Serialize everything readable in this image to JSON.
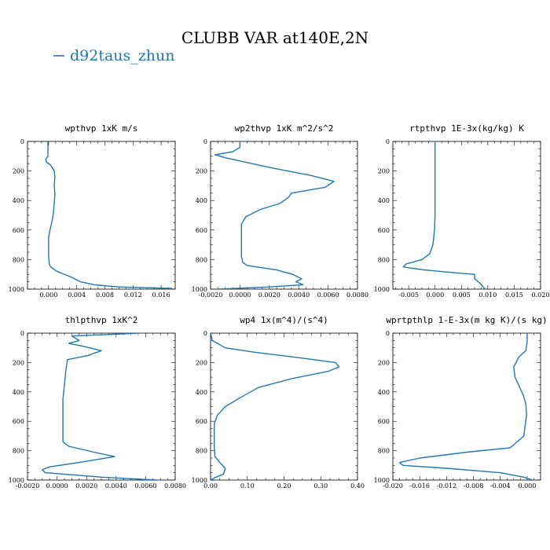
{
  "title": "CLUBB VAR at140E,2N",
  "legend": {
    "entries": [
      {
        "label": "d92taus_zhun",
        "color": "#1f77b4"
      }
    ]
  },
  "chart_data": [
    {
      "type": "line",
      "title": "wpthvp  1xK m/s",
      "xlim": [
        -0.003,
        0.018
      ],
      "ylim": [
        1000,
        0
      ],
      "xticks": [
        0.0,
        0.004,
        0.008,
        0.012,
        0.016
      ],
      "xtick_labels": [
        "0.000",
        "0.004",
        "0.008",
        "0.012",
        "0.016"
      ],
      "yticks": [
        0,
        200,
        400,
        600,
        800,
        1000
      ],
      "series": [
        {
          "color": "#1f77b4",
          "x": [
            -0.0001,
            -0.0001,
            -0.0001,
            -0.0001,
            -0.0004,
            -0.0003,
            0.0003,
            0.0008,
            0.0009,
            0.0008,
            0.0009,
            0.0008,
            0.0007,
            0.0005,
            0.0002,
            0.0,
            0.0,
            0.0,
            0.0001,
            0.0003,
            0.0012,
            0.0033,
            0.0045,
            0.0065,
            0.01,
            0.0175
          ],
          "y": [
            0,
            40,
            80,
            100,
            120,
            140,
            160,
            200,
            240,
            300,
            360,
            420,
            480,
            540,
            600,
            650,
            700,
            780,
            830,
            850,
            880,
            920,
            950,
            970,
            985,
            995
          ]
        }
      ]
    },
    {
      "type": "line",
      "title": "wp2thvp  1xK m^2/s^2",
      "xlim": [
        -0.002,
        0.008
      ],
      "ylim": [
        1000,
        0
      ],
      "xticks": [
        -0.002,
        0.0,
        0.002,
        0.004,
        0.006,
        0.008
      ],
      "xtick_labels": [
        "-0.0020",
        "0.0000",
        "0.0020",
        "0.0040",
        "0.0060",
        "0.0080"
      ],
      "yticks": [
        0,
        200,
        400,
        600,
        800,
        1000
      ],
      "series": [
        {
          "color": "#1f77b4",
          "x": [
            0.0,
            0.0,
            -0.0005,
            -0.0017,
            -0.001,
            0.0008,
            0.0022,
            0.0048,
            0.0064,
            0.0058,
            0.0035,
            0.0033,
            0.0027,
            0.0014,
            0.0004,
            0.0001,
            0.0001,
            0.0001,
            0.0001,
            0.0002,
            0.0005,
            0.0025,
            0.0036,
            0.0042,
            0.0038,
            0.0043,
            0.002,
            -0.0015
          ],
          "y": [
            0,
            40,
            70,
            90,
            110,
            150,
            180,
            230,
            270,
            310,
            350,
            380,
            420,
            460,
            510,
            560,
            620,
            700,
            780,
            820,
            840,
            870,
            900,
            930,
            950,
            970,
            985,
            1000
          ]
        }
      ]
    },
    {
      "type": "line",
      "title": "rtpthvp  1E-3x(kg/kg) K",
      "xlim": [
        -0.008,
        0.02
      ],
      "ylim": [
        1000,
        0
      ],
      "xticks": [
        -0.005,
        0.0,
        0.005,
        0.01,
        0.015,
        0.02
      ],
      "xtick_labels": [
        "-0.005",
        "0.000",
        "0.005",
        "0.010",
        "0.015",
        "0.020"
      ],
      "yticks": [
        0,
        200,
        400,
        600,
        800,
        1000
      ],
      "series": [
        {
          "color": "#1f77b4",
          "x": [
            0.0,
            0.0,
            0.0,
            0.0,
            0.0,
            0.0,
            -0.0001,
            -0.0004,
            -0.001,
            -0.0025,
            -0.0055,
            -0.006,
            -0.002,
            0.004,
            0.0075,
            0.0075,
            0.0085,
            0.009,
            0.0095
          ],
          "y": [
            0,
            100,
            200,
            300,
            400,
            500,
            600,
            700,
            760,
            800,
            830,
            850,
            870,
            890,
            900,
            930,
            960,
            980,
            1000
          ]
        }
      ]
    },
    {
      "type": "line",
      "title": "thlpthvp  1xK^2",
      "xlim": [
        -0.002,
        0.008
      ],
      "ylim": [
        1000,
        0
      ],
      "xticks": [
        -0.002,
        0.0,
        0.002,
        0.004,
        0.006,
        0.008
      ],
      "xtick_labels": [
        "-0.0020",
        "0.0000",
        "0.0020",
        "0.0040",
        "0.0060",
        "0.0080"
      ],
      "yticks": [
        0,
        200,
        400,
        600,
        800,
        1000
      ],
      "series": [
        {
          "color": "#1f77b4",
          "x": [
            0.0055,
            0.001,
            0.0015,
            0.0008,
            0.0018,
            0.003,
            0.0024,
            0.0022,
            0.0007,
            0.0006,
            0.0005,
            0.0004,
            0.0004,
            0.0004,
            0.0004,
            0.0008,
            0.0025,
            0.0039,
            0.0015,
            -0.0005,
            -0.001,
            -0.0008,
            0.003,
            0.0068
          ],
          "y": [
            0,
            20,
            50,
            70,
            90,
            120,
            140,
            150,
            180,
            250,
            350,
            450,
            550,
            650,
            740,
            770,
            810,
            840,
            880,
            910,
            930,
            950,
            980,
            1000
          ]
        }
      ]
    },
    {
      "type": "line",
      "title": "wp4  1x(m^4)/(s^4)",
      "xlim": [
        0.0,
        0.4
      ],
      "ylim": [
        1000,
        0
      ],
      "xticks": [
        0.0,
        0.1,
        0.2,
        0.3,
        0.4
      ],
      "xtick_labels": [
        "0.00",
        "0.10",
        "0.20",
        "0.30",
        "0.40"
      ],
      "yticks": [
        0,
        200,
        400,
        600,
        800,
        1000
      ],
      "series": [
        {
          "color": "#1f77b4",
          "x": [
            0.0,
            0.005,
            0.04,
            0.12,
            0.25,
            0.34,
            0.35,
            0.32,
            0.22,
            0.13,
            0.08,
            0.04,
            0.018,
            0.01,
            0.01,
            0.01,
            0.012,
            0.025,
            0.04,
            0.035,
            0.01,
            0.0
          ],
          "y": [
            0,
            50,
            100,
            130,
            170,
            200,
            230,
            260,
            310,
            370,
            440,
            500,
            560,
            620,
            700,
            780,
            840,
            880,
            920,
            960,
            985,
            1000
          ]
        }
      ]
    },
    {
      "type": "line",
      "title": "wprtpthlp  1-E-3x(m kg K)/(s kg)",
      "xlim": [
        -0.02,
        0.002
      ],
      "ylim": [
        1000,
        0
      ],
      "xticks": [
        -0.02,
        -0.016,
        -0.012,
        -0.008,
        -0.004,
        0.0
      ],
      "xtick_labels": [
        "-0.020",
        "-0.016",
        "-0.012",
        "-0.008",
        "-0.004",
        "0.000"
      ],
      "yticks": [
        0,
        200,
        400,
        600,
        800,
        1000
      ],
      "series": [
        {
          "color": "#1f77b4",
          "x": [
            0.0,
            0.0,
            -0.0002,
            -0.0012,
            -0.002,
            -0.0018,
            -0.0012,
            -0.0006,
            -0.0002,
            -0.0001,
            -0.0005,
            -0.0025,
            -0.009,
            -0.016,
            -0.019,
            -0.0185,
            -0.012,
            -0.004,
            -0.0005,
            0.0008
          ],
          "y": [
            0,
            60,
            120,
            160,
            230,
            300,
            360,
            420,
            480,
            560,
            700,
            780,
            810,
            850,
            880,
            900,
            920,
            950,
            980,
            1000
          ]
        }
      ]
    }
  ]
}
